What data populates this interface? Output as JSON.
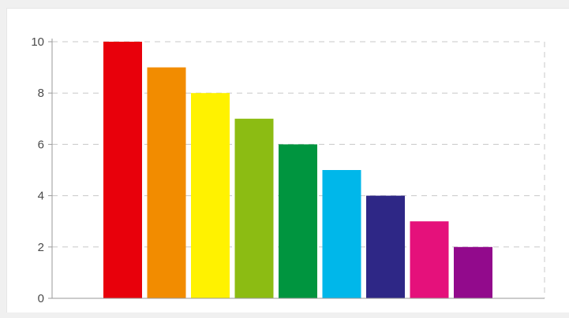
{
  "chart_data": {
    "type": "bar",
    "title": "",
    "xlabel": "",
    "ylabel": "",
    "categories": [
      "",
      "",
      "",
      "",
      "",
      "",
      "",
      "",
      ""
    ],
    "values": [
      10,
      9,
      8,
      7,
      6,
      5,
      4,
      3,
      2
    ],
    "colors": [
      "#e8000b",
      "#f28c00",
      "#fff200",
      "#8cbc13",
      "#00953f",
      "#00b7ea",
      "#2e2786",
      "#e5117b",
      "#920a8c"
    ],
    "ylim": [
      0,
      10
    ],
    "yticks": [
      {
        "value": 0,
        "label": "0"
      },
      {
        "value": 2,
        "label": "2"
      },
      {
        "value": 4,
        "label": "4"
      },
      {
        "value": 6,
        "label": "6"
      },
      {
        "value": 8,
        "label": "8"
      },
      {
        "value": 10,
        "label": "10"
      }
    ],
    "grid": true,
    "grid_style": "dashed",
    "legend": "none"
  }
}
